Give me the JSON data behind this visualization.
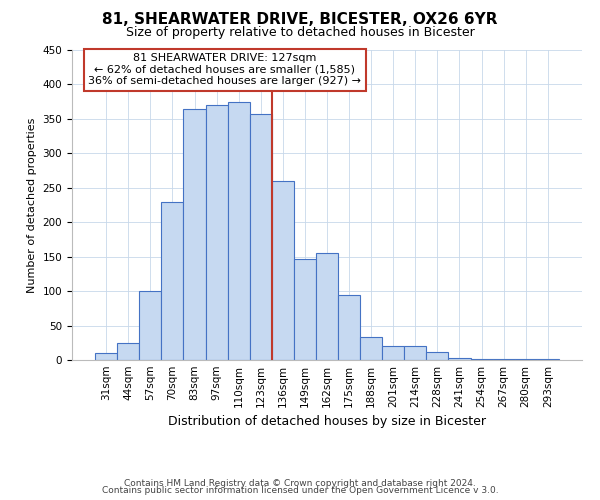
{
  "title": "81, SHEARWATER DRIVE, BICESTER, OX26 6YR",
  "subtitle": "Size of property relative to detached houses in Bicester",
  "xlabel": "Distribution of detached houses by size in Bicester",
  "ylabel": "Number of detached properties",
  "bin_labels": [
    "31sqm",
    "44sqm",
    "57sqm",
    "70sqm",
    "83sqm",
    "97sqm",
    "110sqm",
    "123sqm",
    "136sqm",
    "149sqm",
    "162sqm",
    "175sqm",
    "188sqm",
    "201sqm",
    "214sqm",
    "228sqm",
    "241sqm",
    "254sqm",
    "267sqm",
    "280sqm",
    "293sqm"
  ],
  "bar_values": [
    10,
    25,
    100,
    230,
    365,
    370,
    375,
    357,
    260,
    147,
    155,
    95,
    33,
    20,
    20,
    11,
    3,
    2,
    2,
    1,
    2
  ],
  "bar_color": "#c6d9f1",
  "bar_edge_color": "#4472c4",
  "highlight_line_index": 7,
  "ylim": [
    0,
    450
  ],
  "yticks": [
    0,
    50,
    100,
    150,
    200,
    250,
    300,
    350,
    400,
    450
  ],
  "annotation_title": "81 SHEARWATER DRIVE: 127sqm",
  "annotation_line1": "← 62% of detached houses are smaller (1,585)",
  "annotation_line2": "36% of semi-detached houses are larger (927) →",
  "annotation_box_color": "#ffffff",
  "annotation_box_edge_color": "#c0392b",
  "footer_line1": "Contains HM Land Registry data © Crown copyright and database right 2024.",
  "footer_line2": "Contains public sector information licensed under the Open Government Licence v 3.0.",
  "background_color": "#ffffff",
  "grid_color": "#c8d8ea",
  "title_fontsize": 11,
  "subtitle_fontsize": 9,
  "xlabel_fontsize": 9,
  "ylabel_fontsize": 8,
  "tick_fontsize": 7.5,
  "footer_fontsize": 6.5,
  "annotation_fontsize": 8
}
